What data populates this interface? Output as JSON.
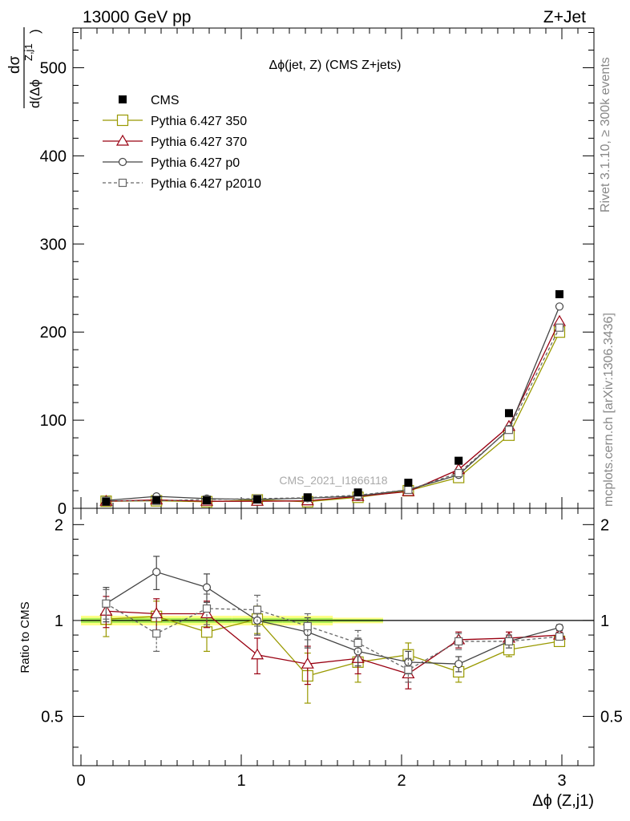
{
  "header": {
    "left": "13000 GeV pp",
    "right": "Z+Jet"
  },
  "side_labels": {
    "rivet": "Rivet 3.1.10, ≥ 300k events",
    "mcplots": "mcplots.cern.ch [arXiv:1306.3436]"
  },
  "colors": {
    "cms": "#000000",
    "p350": "#999900",
    "p370": "#990011",
    "p0": "#444444",
    "p2010": "#666666",
    "band_outer": "#ffff88",
    "band_inner": "#aaee55"
  },
  "chart_data": [
    {
      "type": "scatter",
      "title": "Δϕ(jet, Z) (CMS Z+jets)",
      "ylabel": "dσ / d(Δϕ^{Z,j1})",
      "ylabel_num": "dσ",
      "ylabel_den": "d(Δϕ",
      "ylabel_sup": "Z,j1",
      "ylabel_close": ")",
      "watermark": "CMS_2021_I1866118",
      "xlim": [
        -0.05,
        3.2
      ],
      "ylim": [
        0,
        545
      ],
      "yticks": [
        "0",
        "100",
        "200",
        "300",
        "400",
        "500"
      ],
      "legend_position": "top-left",
      "x": [
        0.157,
        0.471,
        0.785,
        1.1,
        1.414,
        1.728,
        2.042,
        2.356,
        2.67,
        2.985
      ],
      "series": [
        {
          "key": "cms",
          "name": "CMS",
          "values": [
            7.5,
            9.5,
            9,
            10,
            12.5,
            18,
            29,
            54,
            108,
            243
          ]
        },
        {
          "key": "p350",
          "name": "Pythia 6.427 350",
          "values": [
            8,
            8.5,
            7.5,
            9.5,
            7.5,
            12.5,
            20,
            35,
            83,
            200
          ]
        },
        {
          "key": "p370",
          "name": "Pythia 6.427 370",
          "values": [
            8,
            9.5,
            8,
            8,
            8.5,
            13.5,
            19,
            44,
            93,
            212
          ]
        },
        {
          "key": "p0",
          "name": "Pythia 6.427 p0",
          "values": [
            9,
            13.5,
            11,
            10,
            11.5,
            14,
            21,
            38,
            90,
            229
          ]
        },
        {
          "key": "p2010",
          "name": "Pythia 6.427 p2010",
          "values": [
            8.5,
            8.5,
            10,
            11,
            12,
            15,
            21,
            40,
            89,
            205
          ]
        }
      ]
    },
    {
      "type": "scatter",
      "ylabel": "Ratio to CMS",
      "xlabel": "Δϕ (Z,j1)",
      "xlim": [
        -0.05,
        3.2
      ],
      "ylim": [
        0.35,
        2.25
      ],
      "xticks": [
        "0",
        "1",
        "2",
        "3"
      ],
      "yticks": [
        "0.5",
        "1",
        "2"
      ],
      "x": [
        0.157,
        0.471,
        0.785,
        1.1,
        1.414,
        1.728,
        2.042,
        2.356,
        2.67,
        2.985
      ],
      "series": [
        {
          "key": "p350",
          "name": "Pythia 6.427 350",
          "values": [
            1.01,
            1.03,
            0.92,
            1.01,
            0.67,
            0.74,
            0.78,
            0.69,
            0.81,
            0.86
          ],
          "errors": [
            0.12,
            0.12,
            0.12,
            0.1,
            0.12,
            0.1,
            0.07,
            0.05,
            0.04,
            0.02
          ]
        },
        {
          "key": "p370",
          "name": "Pythia 6.427 370",
          "values": [
            1.07,
            1.05,
            1.05,
            0.78,
            0.73,
            0.76,
            0.68,
            0.87,
            0.88,
            0.9
          ],
          "errors": [
            0.12,
            0.12,
            0.1,
            0.1,
            0.1,
            0.08,
            0.07,
            0.05,
            0.04,
            0.02
          ]
        },
        {
          "key": "p0",
          "name": "Pythia 6.427 p0",
          "values": [
            1.13,
            1.42,
            1.27,
            1.0,
            0.92,
            0.8,
            0.74,
            0.73,
            0.86,
            0.95
          ],
          "errors": [
            0.14,
            0.17,
            0.13,
            0.1,
            0.1,
            0.08,
            0.06,
            0.04,
            0.04,
            0.02
          ]
        },
        {
          "key": "p2010",
          "name": "Pythia 6.427 p2010",
          "values": [
            1.13,
            0.91,
            1.09,
            1.08,
            0.96,
            0.85,
            0.7,
            0.86,
            0.86,
            0.89
          ],
          "errors": [
            0.12,
            0.11,
            0.12,
            0.12,
            0.09,
            0.08,
            0.06,
            0.05,
            0.04,
            0.02
          ]
        }
      ]
    }
  ]
}
